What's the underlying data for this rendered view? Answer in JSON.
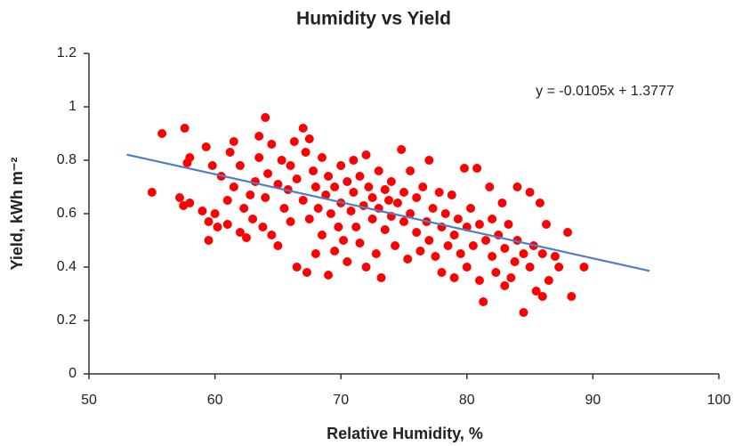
{
  "chart_data": {
    "type": "scatter",
    "title": "Humidity vs Yield",
    "x_label": "Relative Humidity, %",
    "y_label": "Yield, kWh m⁻²",
    "annotation": "y = -0.0105x + 1.3777",
    "color": "#ff0000",
    "x": [
      55,
      55.8,
      57.2,
      57.5,
      57.6,
      57.8,
      58,
      58,
      59,
      59.3,
      59.5,
      59.5,
      59.8,
      60,
      60.2,
      60.5,
      61,
      61,
      61.2,
      61.5,
      61.5,
      62,
      62,
      62.3,
      62.5,
      62.8,
      63,
      63.2,
      63.5,
      63.5,
      63.8,
      64,
      64,
      64.2,
      64.5,
      64.5,
      65,
      65,
      65.3,
      65.5,
      65.8,
      66,
      66,
      66.3,
      66.5,
      66.5,
      67,
      67,
      67.2,
      67.3,
      67.5,
      67.5,
      67.8,
      68,
      68,
      68.2,
      68.5,
      68.5,
      68.8,
      69,
      69,
      69.2,
      69.5,
      69.5,
      69.8,
      70,
      70,
      70.2,
      70.5,
      70.5,
      70.8,
      71,
      71,
      71.2,
      71.5,
      71.5,
      71.8,
      72,
      72,
      72.2,
      72.5,
      72.5,
      72.8,
      73,
      73,
      73.2,
      73.5,
      73.5,
      73.8,
      74,
      74,
      74.3,
      74.5,
      74.8,
      75,
      75,
      75.3,
      75.5,
      75.5,
      76,
      76,
      76.3,
      76.5,
      76.8,
      77,
      77,
      77.3,
      77.5,
      77.8,
      78,
      78,
      78.3,
      78.5,
      78.8,
      79,
      79,
      79.3,
      79.5,
      79.8,
      80,
      80,
      80.3,
      80.5,
      80.8,
      81,
      81,
      81.3,
      81.5,
      81.8,
      82,
      82,
      82.3,
      82.5,
      82.8,
      83,
      83,
      83.3,
      83.5,
      83.8,
      84,
      84,
      84.5,
      84.5,
      85,
      85,
      85.3,
      85.5,
      85.8,
      86,
      86,
      86.3,
      86.5,
      87,
      87.3,
      88,
      88.3,
      89.3
    ],
    "values": [
      0.68,
      0.9,
      0.66,
      0.63,
      0.92,
      0.79,
      0.81,
      0.64,
      0.61,
      0.85,
      0.5,
      0.57,
      0.78,
      0.6,
      0.55,
      0.74,
      0.65,
      0.56,
      0.83,
      0.87,
      0.7,
      0.53,
      0.78,
      0.62,
      0.51,
      0.67,
      0.58,
      0.72,
      0.89,
      0.81,
      0.55,
      0.96,
      0.66,
      0.75,
      0.52,
      0.86,
      0.71,
      0.48,
      0.8,
      0.62,
      0.69,
      0.78,
      0.57,
      0.87,
      0.73,
      0.4,
      0.92,
      0.65,
      0.83,
      0.38,
      0.88,
      0.58,
      0.76,
      0.7,
      0.45,
      0.62,
      0.81,
      0.52,
      0.67,
      0.37,
      0.74,
      0.6,
      0.46,
      0.7,
      0.55,
      0.78,
      0.64,
      0.5,
      0.72,
      0.42,
      0.61,
      0.8,
      0.68,
      0.55,
      0.74,
      0.49,
      0.63,
      0.82,
      0.4,
      0.7,
      0.58,
      0.66,
      0.45,
      0.76,
      0.62,
      0.36,
      0.69,
      0.54,
      0.65,
      0.59,
      0.72,
      0.48,
      0.64,
      0.84,
      0.57,
      0.68,
      0.43,
      0.76,
      0.6,
      0.53,
      0.66,
      0.46,
      0.7,
      0.57,
      0.8,
      0.5,
      0.62,
      0.44,
      0.68,
      0.55,
      0.38,
      0.6,
      0.48,
      0.67,
      0.52,
      0.36,
      0.58,
      0.45,
      0.77,
      0.55,
      0.4,
      0.62,
      0.48,
      0.77,
      0.56,
      0.35,
      0.27,
      0.5,
      0.7,
      0.44,
      0.58,
      0.38,
      0.52,
      0.64,
      0.33,
      0.47,
      0.56,
      0.36,
      0.42,
      0.7,
      0.5,
      0.23,
      0.45,
      0.68,
      0.4,
      0.48,
      0.31,
      0.64,
      0.29,
      0.45,
      0.56,
      0.35,
      0.44,
      0.4,
      0.53,
      0.29,
      0.4
    ],
    "trendline": {
      "x": [
        53,
        94.5
      ],
      "y": [
        0.8212,
        0.3855
      ],
      "color": "#4f7fc2"
    },
    "xlim": [
      50,
      100
    ],
    "xticks": [
      50,
      60,
      70,
      80,
      90,
      100
    ],
    "ylim": [
      0,
      1.2
    ],
    "yticks": [
      0,
      0.2,
      0.4,
      0.6,
      0.8,
      1,
      1.2
    ]
  }
}
